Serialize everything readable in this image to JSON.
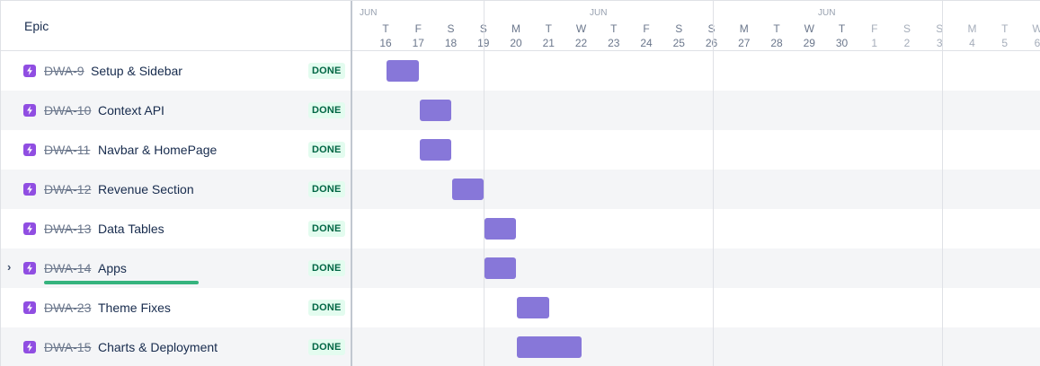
{
  "left_panel": {
    "header_title": "Epic"
  },
  "colors": {
    "bar": "#8777d9",
    "epic_icon": "#904ee2",
    "status_done_text": "#006644",
    "status_done_bg": "#e3fcef",
    "progress": "#36b37e"
  },
  "timeline": {
    "months": [
      "JUN",
      "JUN",
      "JUN"
    ],
    "days": [
      {
        "letter": "T",
        "num": "16"
      },
      {
        "letter": "F",
        "num": "17"
      },
      {
        "letter": "S",
        "num": "18"
      },
      {
        "letter": "S",
        "num": "19"
      },
      {
        "letter": "M",
        "num": "20"
      },
      {
        "letter": "T",
        "num": "21"
      },
      {
        "letter": "W",
        "num": "22"
      },
      {
        "letter": "T",
        "num": "23"
      },
      {
        "letter": "F",
        "num": "24"
      },
      {
        "letter": "S",
        "num": "25"
      },
      {
        "letter": "S",
        "num": "26"
      },
      {
        "letter": "M",
        "num": "27"
      },
      {
        "letter": "T",
        "num": "28"
      },
      {
        "letter": "W",
        "num": "29"
      },
      {
        "letter": "T",
        "num": "30"
      },
      {
        "letter": "F",
        "num": "1"
      },
      {
        "letter": "S",
        "num": "2"
      },
      {
        "letter": "S",
        "num": "3"
      },
      {
        "letter": "M",
        "num": "4"
      },
      {
        "letter": "T",
        "num": "5"
      },
      {
        "letter": "W",
        "num": "6"
      }
    ]
  },
  "epics": [
    {
      "key": "DWA-9",
      "summary": "Setup & Sidebar",
      "status": "DONE",
      "start": "17",
      "end": "17"
    },
    {
      "key": "DWA-10",
      "summary": "Context API",
      "status": "DONE",
      "start": "18",
      "end": "18"
    },
    {
      "key": "DWA-11",
      "summary": "Navbar & HomePage",
      "status": "DONE",
      "start": "18",
      "end": "18"
    },
    {
      "key": "DWA-12",
      "summary": "Revenue Section",
      "status": "DONE",
      "start": "19",
      "end": "19"
    },
    {
      "key": "DWA-13",
      "summary": "Data Tables",
      "status": "DONE",
      "start": "20",
      "end": "20"
    },
    {
      "key": "DWA-14",
      "summary": "Apps",
      "status": "DONE",
      "start": "20",
      "end": "20",
      "expandable": true,
      "progress": 1.0
    },
    {
      "key": "DWA-23",
      "summary": "Theme Fixes",
      "status": "DONE",
      "start": "21",
      "end": "21"
    },
    {
      "key": "DWA-15",
      "summary": "Charts & Deployment",
      "status": "DONE",
      "start": "21",
      "end": "22"
    }
  ]
}
